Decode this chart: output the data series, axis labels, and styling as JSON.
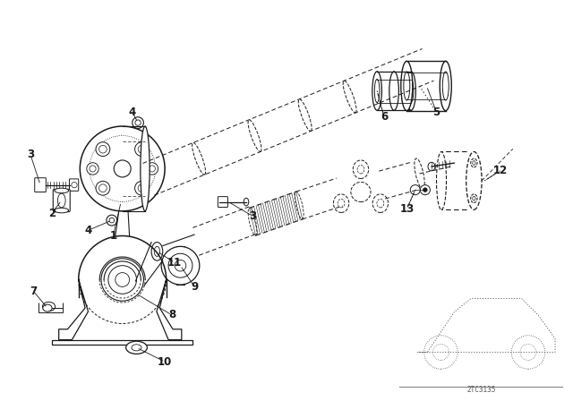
{
  "bg_color": "#ffffff",
  "line_color": "#1a1a1a",
  "figsize": [
    6.4,
    4.48
  ],
  "dpi": 100,
  "diagram_code": "2TC3135",
  "xlim": [
    0,
    8.0
  ],
  "ylim": [
    0,
    5.6
  ]
}
